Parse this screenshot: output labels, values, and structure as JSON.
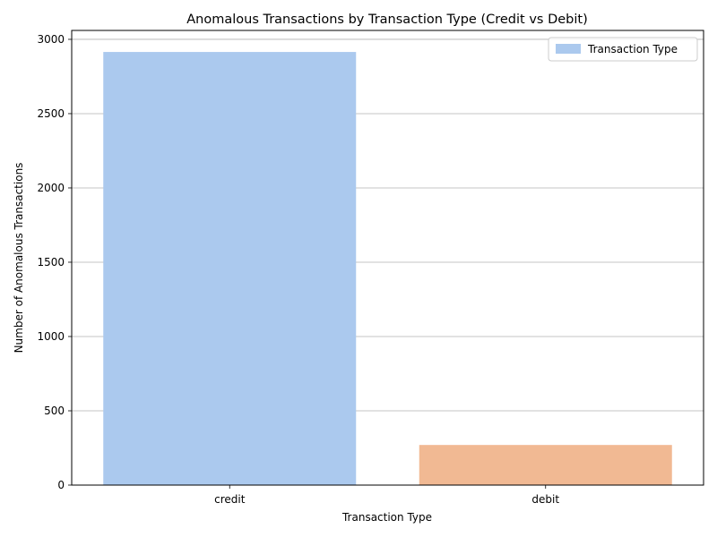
{
  "chart_data": {
    "type": "bar",
    "title": "Anomalous Transactions by Transaction Type (Credit vs Debit)",
    "xlabel": "Transaction Type",
    "ylabel": "Number of Anomalous Transactions",
    "categories": [
      "credit",
      "debit"
    ],
    "values": [
      2915,
      270
    ],
    "colors": [
      "#abc9ee",
      "#f1b993"
    ],
    "ylim": [
      0,
      3060
    ],
    "yticks": [
      0,
      500,
      1000,
      1500,
      2000,
      2500,
      3000
    ],
    "grid": "y",
    "legend": {
      "position": "top-right",
      "label": "Transaction Type",
      "color": "#abc9ee"
    }
  }
}
